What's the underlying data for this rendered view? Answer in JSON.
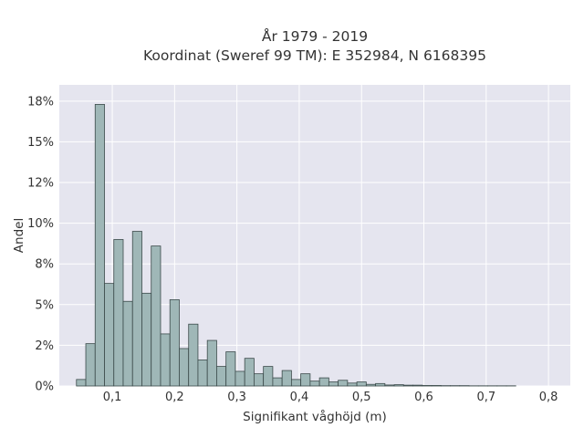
{
  "chart_data": {
    "type": "bar",
    "title": "År 1979 - 2019",
    "subtitle": "Koordinat (Sweref 99 TM): E 352984, N 6168395",
    "xlabel": "Signifikant våghöjd (m)",
    "ylabel": "Andel",
    "xlim": [
      0.015,
      0.835
    ],
    "ylim": [
      0,
      18.5
    ],
    "x_ticks": [
      0.1,
      0.2,
      0.3,
      0.4,
      0.5,
      0.6,
      0.7,
      0.8
    ],
    "x_tick_labels": [
      "0,1",
      "0,2",
      "0,3",
      "0,4",
      "0,5",
      "0,6",
      "0,7",
      "0,8"
    ],
    "y_ticks": [
      0,
      2.5,
      5,
      7.5,
      10,
      12.5,
      15,
      17.5
    ],
    "y_tick_labels": [
      "0%",
      "2%",
      "5%",
      "8%",
      "10%",
      "12%",
      "15%",
      "18%"
    ],
    "grid": true,
    "bin_width": 0.015,
    "x": [
      0.05,
      0.065,
      0.08,
      0.095,
      0.11,
      0.125,
      0.14,
      0.155,
      0.17,
      0.185,
      0.2,
      0.215,
      0.23,
      0.245,
      0.26,
      0.275,
      0.29,
      0.305,
      0.32,
      0.335,
      0.35,
      0.365,
      0.38,
      0.395,
      0.41,
      0.425,
      0.44,
      0.455,
      0.47,
      0.485,
      0.5,
      0.515,
      0.53,
      0.545,
      0.56,
      0.575,
      0.59,
      0.605,
      0.62,
      0.635,
      0.65,
      0.665,
      0.68,
      0.695,
      0.71,
      0.725,
      0.74
    ],
    "values": [
      0.4,
      2.6,
      17.3,
      6.3,
      9.0,
      5.2,
      9.5,
      5.7,
      8.6,
      3.2,
      5.3,
      2.3,
      3.8,
      1.6,
      2.8,
      1.2,
      2.1,
      0.9,
      1.7,
      0.75,
      1.2,
      0.5,
      0.95,
      0.4,
      0.75,
      0.3,
      0.5,
      0.25,
      0.35,
      0.18,
      0.25,
      0.1,
      0.15,
      0.06,
      0.08,
      0.05,
      0.05,
      0.03,
      0.03,
      0.02,
      0.02,
      0.02,
      0.01,
      0.01,
      0.01,
      0.01,
      0.01
    ]
  }
}
